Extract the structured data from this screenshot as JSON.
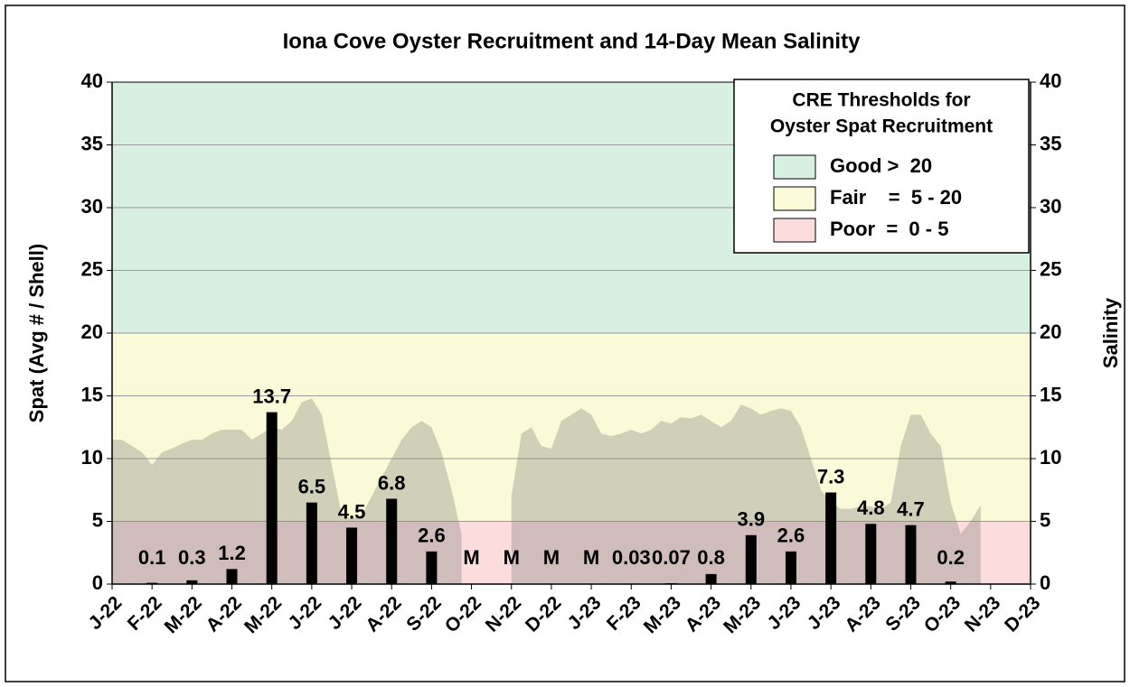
{
  "chart_data": {
    "type": "bar",
    "title": "Iona Cove Oyster Recruitment and 14-Day Mean Salinity",
    "y_label": "Spat (Avg # / Shell)",
    "y2_label": "Salinity",
    "categories": [
      "J-22",
      "F-22",
      "M-22",
      "A-22",
      "M-22",
      "J-22",
      "J-22",
      "A-22",
      "S-22",
      "O-22",
      "N-22",
      "D-22",
      "J-23",
      "F-23",
      "M-23",
      "A-23",
      "M-23",
      "J-23",
      "J-23",
      "A-23",
      "S-23",
      "O-23",
      "N-23",
      "D-23"
    ],
    "values": [
      null,
      0.1,
      0.3,
      1.2,
      13.7,
      6.5,
      4.5,
      6.8,
      2.6,
      null,
      null,
      null,
      null,
      0.03,
      0.07,
      0.8,
      3.9,
      2.6,
      7.3,
      4.8,
      4.7,
      0.2,
      null,
      null
    ],
    "value_labels": [
      null,
      "0.1",
      "0.3",
      "1.2",
      "13.7",
      "6.5",
      "4.5",
      "6.8",
      "2.6",
      "M",
      "M",
      "M",
      "M",
      "0.03",
      "0.07",
      "0.8",
      "3.9",
      "2.6",
      "7.3",
      "4.8",
      "4.7",
      "0.2",
      null,
      null
    ],
    "color": "#000000",
    "area": {
      "axis": "y2",
      "color": "#808080",
      "values": [
        11.5,
        11.5,
        11,
        10.5,
        9.5,
        10.5,
        10.8,
        11.2,
        11.5,
        11.5,
        12,
        12.3,
        12.3,
        12.3,
        11.5,
        12,
        12.5,
        12.3,
        13,
        14.5,
        14.8,
        13.5,
        9.5,
        5.5,
        5.2,
        5.5,
        7,
        8.5,
        10,
        11.5,
        12.5,
        13,
        12.5,
        10.5,
        7.5,
        4,
        null,
        null,
        null,
        null,
        7,
        12,
        12.5,
        11,
        10.8,
        13,
        13.5,
        14,
        13.5,
        12,
        11.8,
        12,
        12.3,
        12,
        12.3,
        13,
        12.8,
        13.3,
        13.2,
        13.5,
        13,
        12.5,
        13,
        14.3,
        14,
        13.5,
        13.8,
        14,
        13.8,
        12.5,
        10,
        7.5,
        6.5,
        6,
        6,
        6.2,
        6.2,
        6,
        6.5,
        11,
        13.5,
        13.5,
        12,
        11,
        6.5,
        4,
        5,
        6.3
      ]
    },
    "bands": [
      {
        "name": "Good >  20",
        "color": "#d8f0e2",
        "from": 20,
        "to": 40
      },
      {
        "name": "Fair    =  5 - 20",
        "color": "#fafad8",
        "from": 5,
        "to": 20
      },
      {
        "name": "Poor  =  0 - 5",
        "color": "#fcdcdc",
        "from": 0,
        "to": 5
      }
    ],
    "legend_title": [
      "CRE Thresholds for",
      "Oyster Spat Recruitment"
    ],
    "legend_position": "upper right",
    "ylim": [
      0,
      40
    ],
    "yticks": [
      0,
      5,
      10,
      15,
      20,
      25,
      30,
      35,
      40
    ],
    "y2lim": [
      0,
      40
    ],
    "y2ticks": [
      0,
      5,
      10,
      15,
      20,
      25,
      30,
      35,
      40
    ],
    "grid": true
  }
}
